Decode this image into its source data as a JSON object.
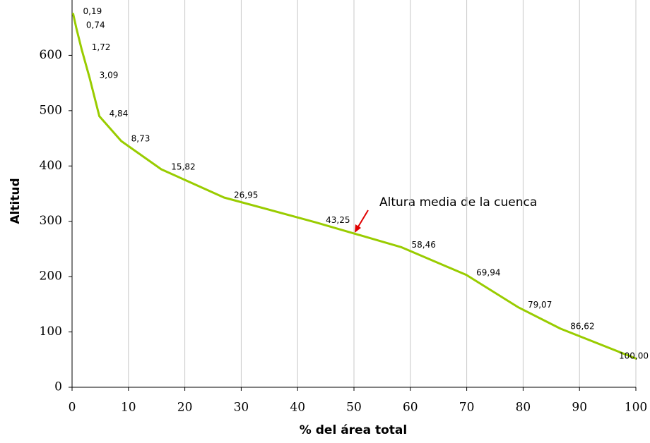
{
  "chart_data": {
    "type": "line",
    "x_label": "% del área total",
    "y_label": "Altitud",
    "annotation": "Altura media de la cuenca",
    "x": [
      0.19,
      0.74,
      1.72,
      3.09,
      4.84,
      8.73,
      15.82,
      26.95,
      43.25,
      58.46,
      69.94,
      79.07,
      86.62,
      100
    ],
    "x_labels": [
      "0,19",
      "0,74",
      "1,72",
      "3,09",
      "4,84",
      "8,73",
      "15,82",
      "26,95",
      "43,25",
      "58,46",
      "69,94",
      "79,07",
      "86,62",
      "100,00"
    ],
    "series": [
      {
        "color": "#99cc00",
        "values": [
          675,
          650,
          610,
          560,
          490,
          445,
          394,
          343,
          298,
          253,
          203,
          145,
          106,
          52
        ]
      }
    ],
    "xlim": [
      0,
      100
    ],
    "xticks": [
      0,
      10,
      20,
      30,
      40,
      50,
      60,
      70,
      80,
      90,
      100
    ],
    "ylim": [
      0,
      700
    ],
    "yticks": [
      0,
      100,
      200,
      300,
      400,
      500,
      600
    ],
    "grid": "x"
  }
}
